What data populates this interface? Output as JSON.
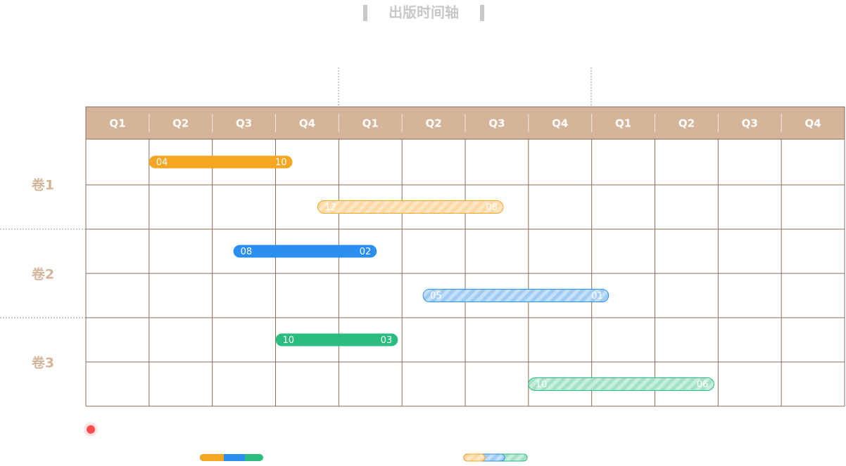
{
  "title": "出版时间轴",
  "quarters": [
    "Q1",
    "Q2",
    "Q3",
    "Q4",
    "Q1",
    "Q2",
    "Q3",
    "Q4",
    "Q1",
    "Q2",
    "Q3",
    "Q4"
  ],
  "volumes": [
    {
      "label": "卷1",
      "rows": [
        {
          "start": "04",
          "end": "10"
        },
        {
          "start": "12",
          "end": "08"
        }
      ]
    },
    {
      "label": "卷2",
      "rows": [
        {
          "start": "08",
          "end": "02"
        },
        {
          "start": "05",
          "end": "01"
        }
      ]
    },
    {
      "label": "卷3",
      "rows": [
        {
          "start": "10",
          "end": "03"
        },
        {
          "start": "10",
          "end": "06"
        }
      ]
    }
  ]
}
